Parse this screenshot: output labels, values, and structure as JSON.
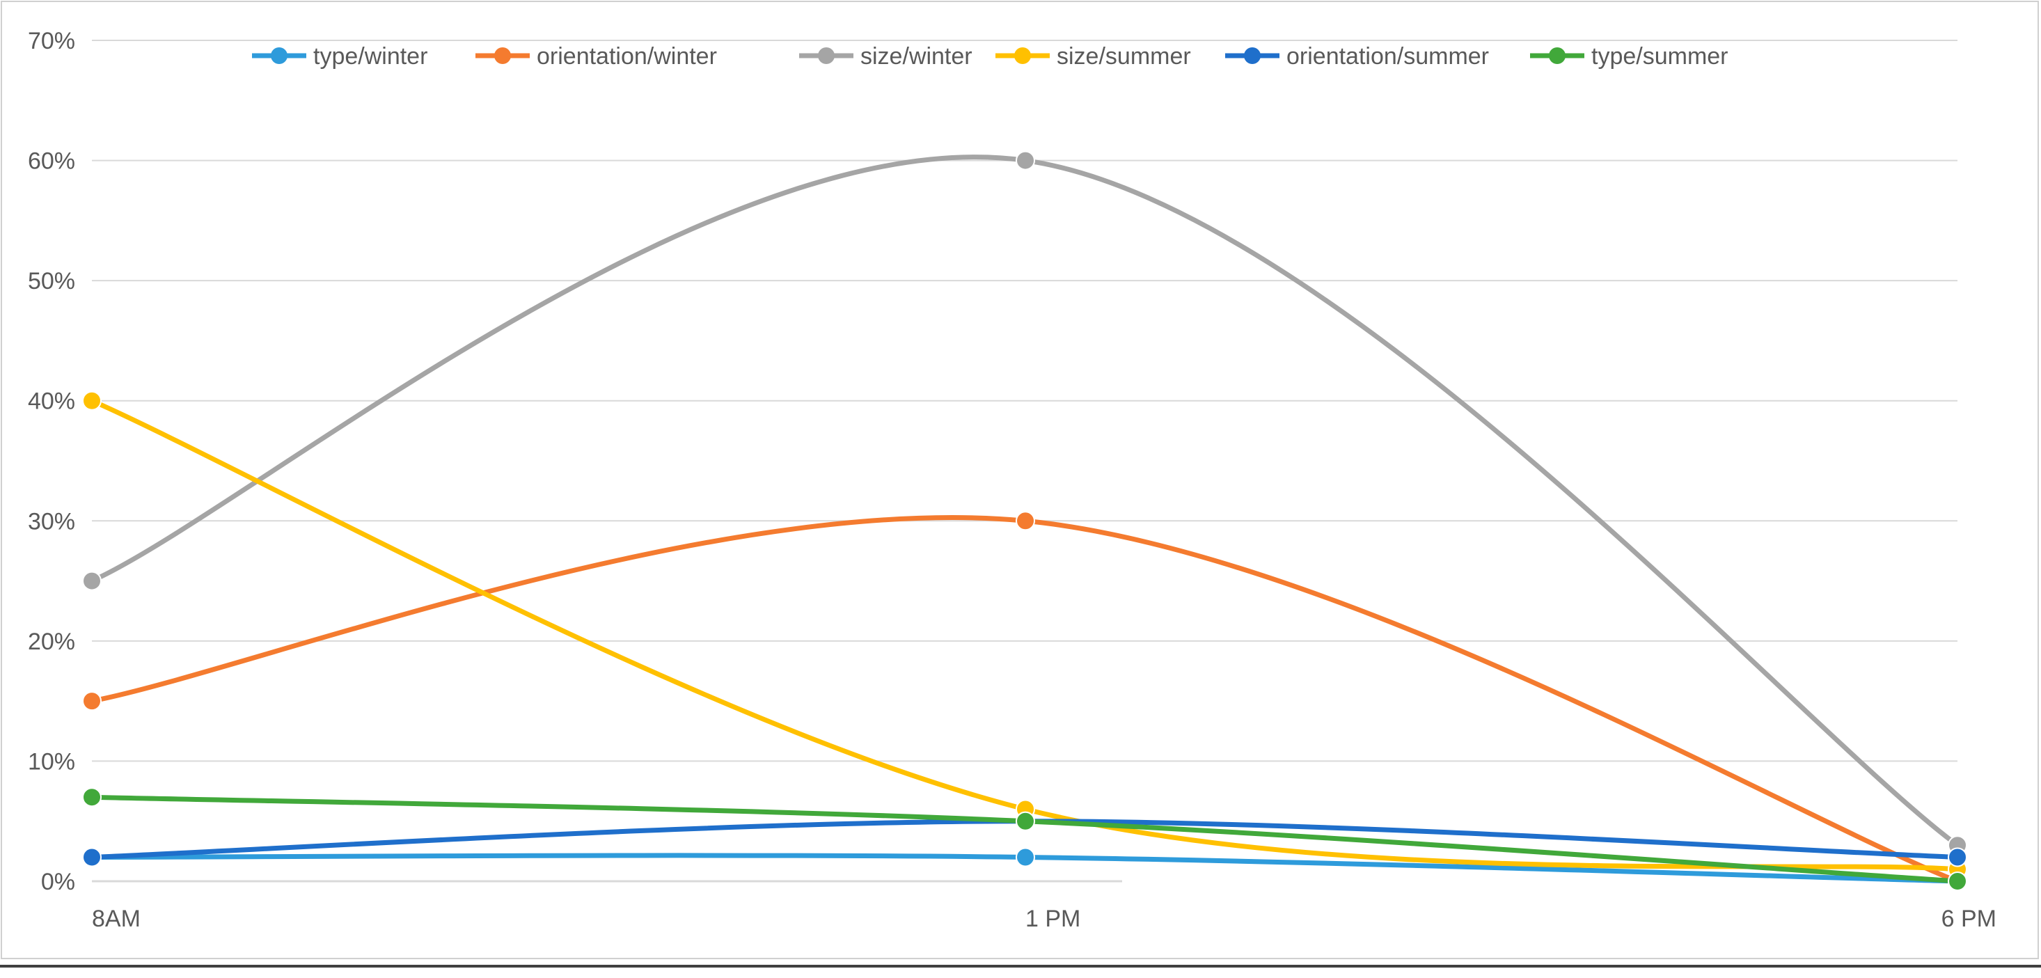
{
  "chart_data": {
    "type": "line",
    "title": "",
    "xlabel": "",
    "ylabel": "",
    "categories": [
      "8AM",
      "1 PM",
      "6 PM"
    ],
    "y_ticks": [
      "0%",
      "10%",
      "20%",
      "30%",
      "40%",
      "50%",
      "60%",
      "70%"
    ],
    "ylim": [
      0,
      70
    ],
    "grid": true,
    "smooth": true,
    "legend_position": "top",
    "series": [
      {
        "name": "type/winter",
        "color": "#2E9BDB",
        "values": [
          2,
          2,
          0
        ]
      },
      {
        "name": "orientation/winter",
        "color": "#F47B2F",
        "values": [
          15,
          30,
          0
        ]
      },
      {
        "name": "size/winter",
        "color": "#A5A5A5",
        "values": [
          25,
          60,
          3
        ]
      },
      {
        "name": "size/summer",
        "color": "#FFC000",
        "values": [
          40,
          6,
          1
        ]
      },
      {
        "name": "orientation/summer",
        "color": "#1F6FCB",
        "values": [
          2,
          5,
          2
        ]
      },
      {
        "name": "type/summer",
        "color": "#41A83A",
        "values": [
          7,
          5,
          0
        ]
      }
    ]
  }
}
